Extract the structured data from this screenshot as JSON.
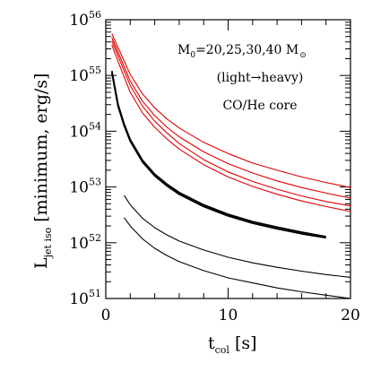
{
  "chart_data": {
    "type": "line",
    "xlabel_main": "t",
    "xlabel_sub": "col",
    "xlabel_unit": "[s]",
    "ylabel_main": "L",
    "ylabel_sub": "jet iso",
    "ylabel_unit": "[minimum, erg/s]",
    "xlim": [
      0,
      20
    ],
    "ylim_log10": [
      51,
      56
    ],
    "y_scale": "log",
    "x_ticks": [
      "0",
      "10",
      "20"
    ],
    "y_tick_base": "10",
    "y_tick_exponents": [
      "51",
      "52",
      "53",
      "54",
      "55",
      "56"
    ],
    "annotation": {
      "line1_pre": "M",
      "line1_sub": "0",
      "line1_post": "=20,25,30,40 M",
      "line1_sun": "⊙",
      "line2": "(light→heavy)",
      "line3_black": "CO/",
      "line3_red": "He core"
    },
    "colors": {
      "co_core": "#000000",
      "he_core": "#dd0000"
    },
    "series": [
      {
        "group": "CO",
        "mass": "20",
        "x": [
          1.5,
          2,
          3,
          4,
          5,
          6,
          8,
          10,
          12,
          14,
          16,
          18,
          20
        ],
        "log10_y": [
          52.45,
          52.3,
          52.07,
          51.9,
          51.77,
          51.66,
          51.5,
          51.37,
          51.28,
          51.19,
          51.12,
          51.06,
          51.0
        ]
      },
      {
        "group": "CO",
        "mass": "25",
        "x": [
          1.5,
          2,
          3,
          4,
          5,
          6,
          8,
          10,
          12,
          14,
          16,
          18,
          20
        ],
        "log10_y": [
          52.85,
          52.68,
          52.44,
          52.27,
          52.14,
          52.03,
          51.87,
          51.74,
          51.64,
          51.56,
          51.49,
          51.43,
          51.38
        ]
      },
      {
        "group": "CO",
        "mass": "30",
        "x": [
          0.5,
          1,
          1.5,
          2,
          3,
          4,
          5,
          6,
          8,
          10,
          12,
          14,
          16,
          18
        ],
        "log10_y": [
          55.05,
          54.45,
          54.1,
          53.82,
          53.45,
          53.2,
          53.02,
          52.87,
          52.65,
          52.48,
          52.35,
          52.25,
          52.16,
          52.09
        ]
      },
      {
        "group": "CO",
        "mass": "40",
        "x": [
          0.5,
          1,
          1.5,
          2,
          3,
          4,
          5,
          6,
          8,
          10,
          12,
          14,
          16,
          18
        ],
        "log10_y": [
          55.08,
          54.48,
          54.13,
          53.85,
          53.48,
          53.23,
          53.05,
          52.9,
          52.68,
          52.51,
          52.38,
          52.28,
          52.19,
          52.11
        ]
      },
      {
        "group": "He",
        "mass": "20",
        "x": [
          0.5,
          1,
          2,
          3,
          4,
          5,
          6,
          8,
          10,
          12,
          14,
          16,
          18,
          20
        ],
        "log10_y": [
          55.62,
          55.35,
          54.82,
          54.45,
          54.18,
          53.97,
          53.78,
          53.49,
          53.27,
          53.1,
          52.96,
          52.84,
          52.74,
          52.66
        ]
      },
      {
        "group": "He",
        "mass": "25",
        "x": [
          0.5,
          1,
          2,
          3,
          4,
          5,
          6,
          8,
          10,
          12,
          14,
          16,
          18,
          20
        ],
        "log10_y": [
          55.68,
          55.42,
          54.9,
          54.54,
          54.28,
          54.07,
          53.9,
          53.63,
          53.42,
          53.25,
          53.11,
          52.99,
          52.89,
          52.8
        ]
      },
      {
        "group": "He",
        "mass": "30",
        "x": [
          0.5,
          1,
          2,
          3,
          4,
          5,
          6,
          8,
          10,
          12,
          14,
          16,
          18,
          20
        ],
        "log10_y": [
          55.55,
          55.25,
          54.7,
          54.33,
          54.07,
          53.86,
          53.68,
          53.4,
          53.18,
          53.01,
          52.87,
          52.75,
          52.65,
          52.56
        ]
      },
      {
        "group": "He",
        "mass": "40",
        "x": [
          0.5,
          1,
          2,
          3,
          4,
          5,
          6,
          8,
          10,
          12,
          14,
          16,
          18,
          20
        ],
        "log10_y": [
          55.75,
          55.5,
          55.02,
          54.67,
          54.42,
          54.22,
          54.06,
          53.8,
          53.6,
          53.43,
          53.3,
          53.18,
          53.08,
          52.99
        ]
      }
    ]
  }
}
